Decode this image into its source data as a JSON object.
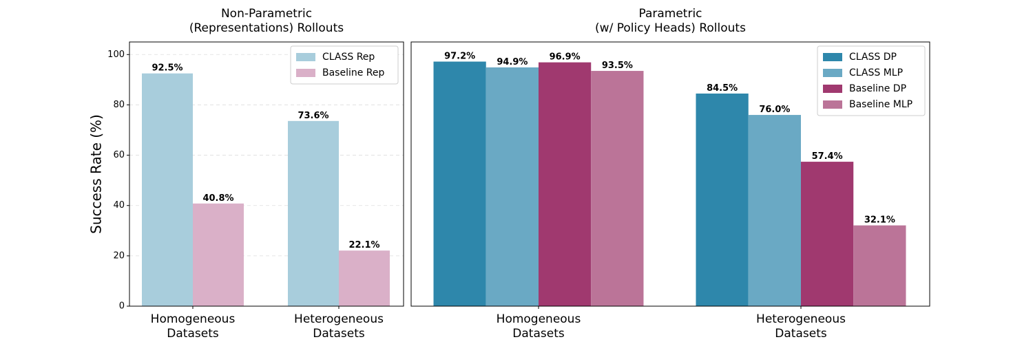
{
  "figure": {
    "ylabel": "Success Rate (%)"
  },
  "chart_data": [
    {
      "type": "bar",
      "title_lines": [
        "Non-Parametric",
        "(Representations) Rollouts"
      ],
      "categories": [
        [
          "Homogeneous",
          "Datasets"
        ],
        [
          "Heterogeneous",
          "Datasets"
        ]
      ],
      "series": [
        {
          "name": "CLASS Rep",
          "color": "#a8cddc",
          "values": [
            92.5,
            73.6
          ]
        },
        {
          "name": "Baseline Rep",
          "color": "#dab0c8",
          "values": [
            40.8,
            22.1
          ]
        }
      ],
      "ylabel": "Success Rate (%)",
      "ylim": [
        0,
        105
      ],
      "yticks": [
        0,
        20,
        40,
        60,
        80,
        100
      ],
      "grid": "horizontal dashed",
      "legend": "top-right"
    },
    {
      "type": "bar",
      "title_lines": [
        "Parametric",
        "(w/ Policy Heads) Rollouts"
      ],
      "categories": [
        [
          "Homogeneous",
          "Datasets"
        ],
        [
          "Heterogeneous",
          "Datasets"
        ]
      ],
      "series": [
        {
          "name": "CLASS DP",
          "color": "#2e87ab",
          "values": [
            97.2,
            84.5
          ]
        },
        {
          "name": "CLASS MLP",
          "color": "#6aa9c4",
          "values": [
            94.9,
            76.0
          ]
        },
        {
          "name": "Baseline DP",
          "color": "#a0396f",
          "values": [
            96.9,
            57.4
          ]
        },
        {
          "name": "Baseline MLP",
          "color": "#bb7498",
          "values": [
            93.5,
            32.1
          ]
        }
      ],
      "ylim": [
        0,
        105
      ],
      "grid": "none",
      "legend": "top-right"
    }
  ]
}
